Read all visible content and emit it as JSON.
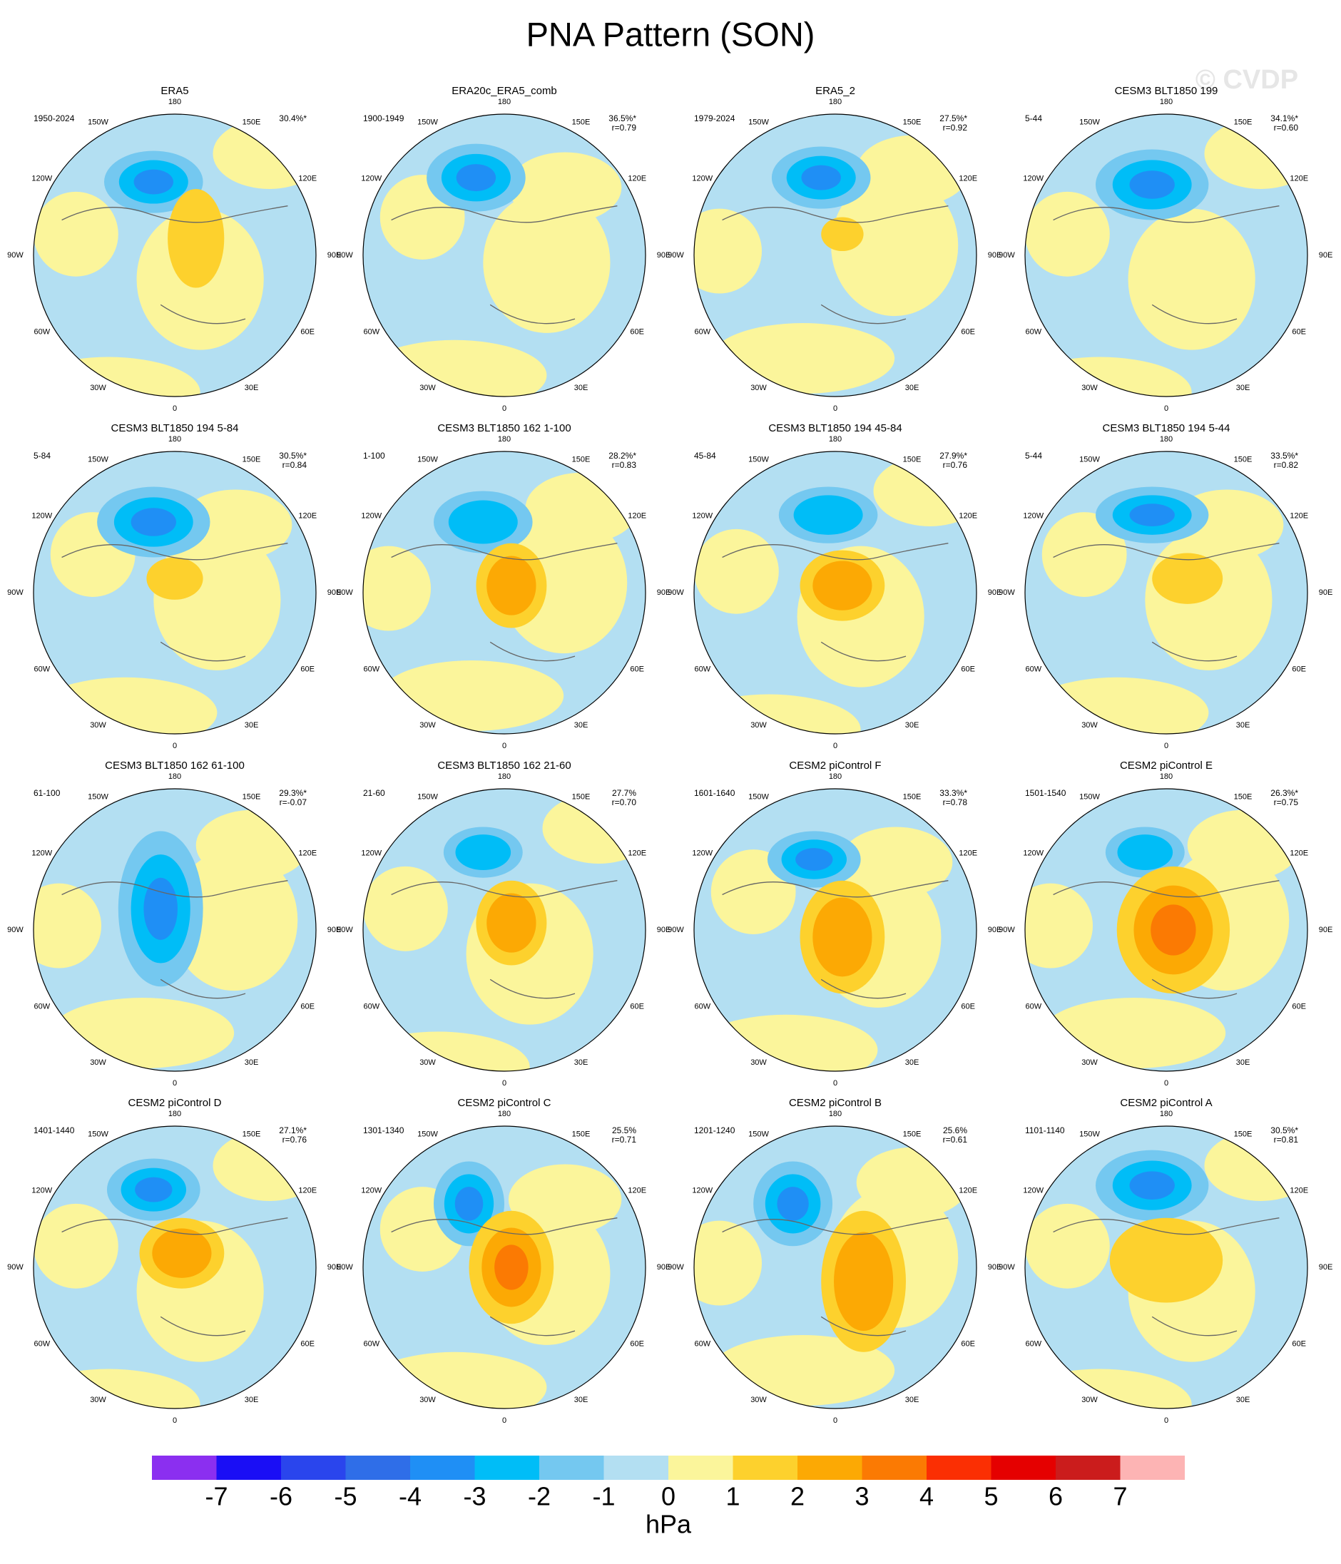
{
  "title": "PNA Pattern (SON)",
  "watermark": "© CVDP",
  "lon_labels": [
    "0",
    "30E",
    "60E",
    "90E",
    "120E",
    "150E",
    "180",
    "150W",
    "120W",
    "90W",
    "60W",
    "30W"
  ],
  "panels": [
    {
      "title": "ERA5",
      "period": "1950-2024",
      "stat": "30.4%*"
    },
    {
      "title": "ERA20c_ERA5_comb",
      "period": "1900-1949",
      "stat": "36.5%*",
      "r": "r=0.79"
    },
    {
      "title": "ERA5_2",
      "period": "1979-2024",
      "stat": "27.5%*",
      "r": "r=0.92"
    },
    {
      "title": "CESM3 BLT1850 199",
      "period": "5-44",
      "stat": "34.1%*",
      "r": "r=0.60"
    },
    {
      "title": "CESM3 BLT1850 194 5-84",
      "period": "5-84",
      "stat": "30.5%*",
      "r": "r=0.84"
    },
    {
      "title": "CESM3 BLT1850 162 1-100",
      "period": "1-100",
      "stat": "28.2%*",
      "r": "r=0.83"
    },
    {
      "title": "CESM3 BLT1850 194 45-84",
      "period": "45-84",
      "stat": "27.9%*",
      "r": "r=0.76"
    },
    {
      "title": "CESM3 BLT1850 194 5-44",
      "period": "5-44",
      "stat": "33.5%*",
      "r": "r=0.82"
    },
    {
      "title": "CESM3 BLT1850 162 61-100",
      "period": "61-100",
      "stat": "29.3%*",
      "r": "r=-0.07"
    },
    {
      "title": "CESM3 BLT1850 162 21-60",
      "period": "21-60",
      "stat": "27.7%",
      "r": "r=0.70"
    },
    {
      "title": "CESM2 piControl F",
      "period": "1601-1640",
      "stat": "33.3%*",
      "r": "r=0.78"
    },
    {
      "title": "CESM2 piControl E",
      "period": "1501-1540",
      "stat": "26.3%*",
      "r": "r=0.75"
    },
    {
      "title": "CESM2 piControl D",
      "period": "1401-1440",
      "stat": "27.1%*",
      "r": "r=0.76"
    },
    {
      "title": "CESM2 piControl C",
      "period": "1301-1340",
      "stat": "25.5%",
      "r": "r=0.71"
    },
    {
      "title": "CESM2 piControl B",
      "period": "1201-1240",
      "stat": "25.6%",
      "r": "r=0.61"
    },
    {
      "title": "CESM2 piControl A",
      "period": "1101-1140",
      "stat": "30.5%*",
      "r": "r=0.81"
    }
  ],
  "colorbar": {
    "colors": [
      "#8b2ff0",
      "#1a0ef5",
      "#2a45ed",
      "#2f6ee8",
      "#1f8ff5",
      "#00bdf7",
      "#74c8f0",
      "#b3dff2",
      "#fbf59b",
      "#fdd12d",
      "#fca904",
      "#fb7a03",
      "#fb2f03",
      "#e50000",
      "#cb1c1c",
      "#fdb4b4"
    ],
    "ticks": [
      -7,
      -6,
      -5,
      -4,
      -3,
      -2,
      -1,
      0,
      1,
      2,
      3,
      4,
      5,
      6,
      7
    ],
    "label": "hPa"
  }
}
